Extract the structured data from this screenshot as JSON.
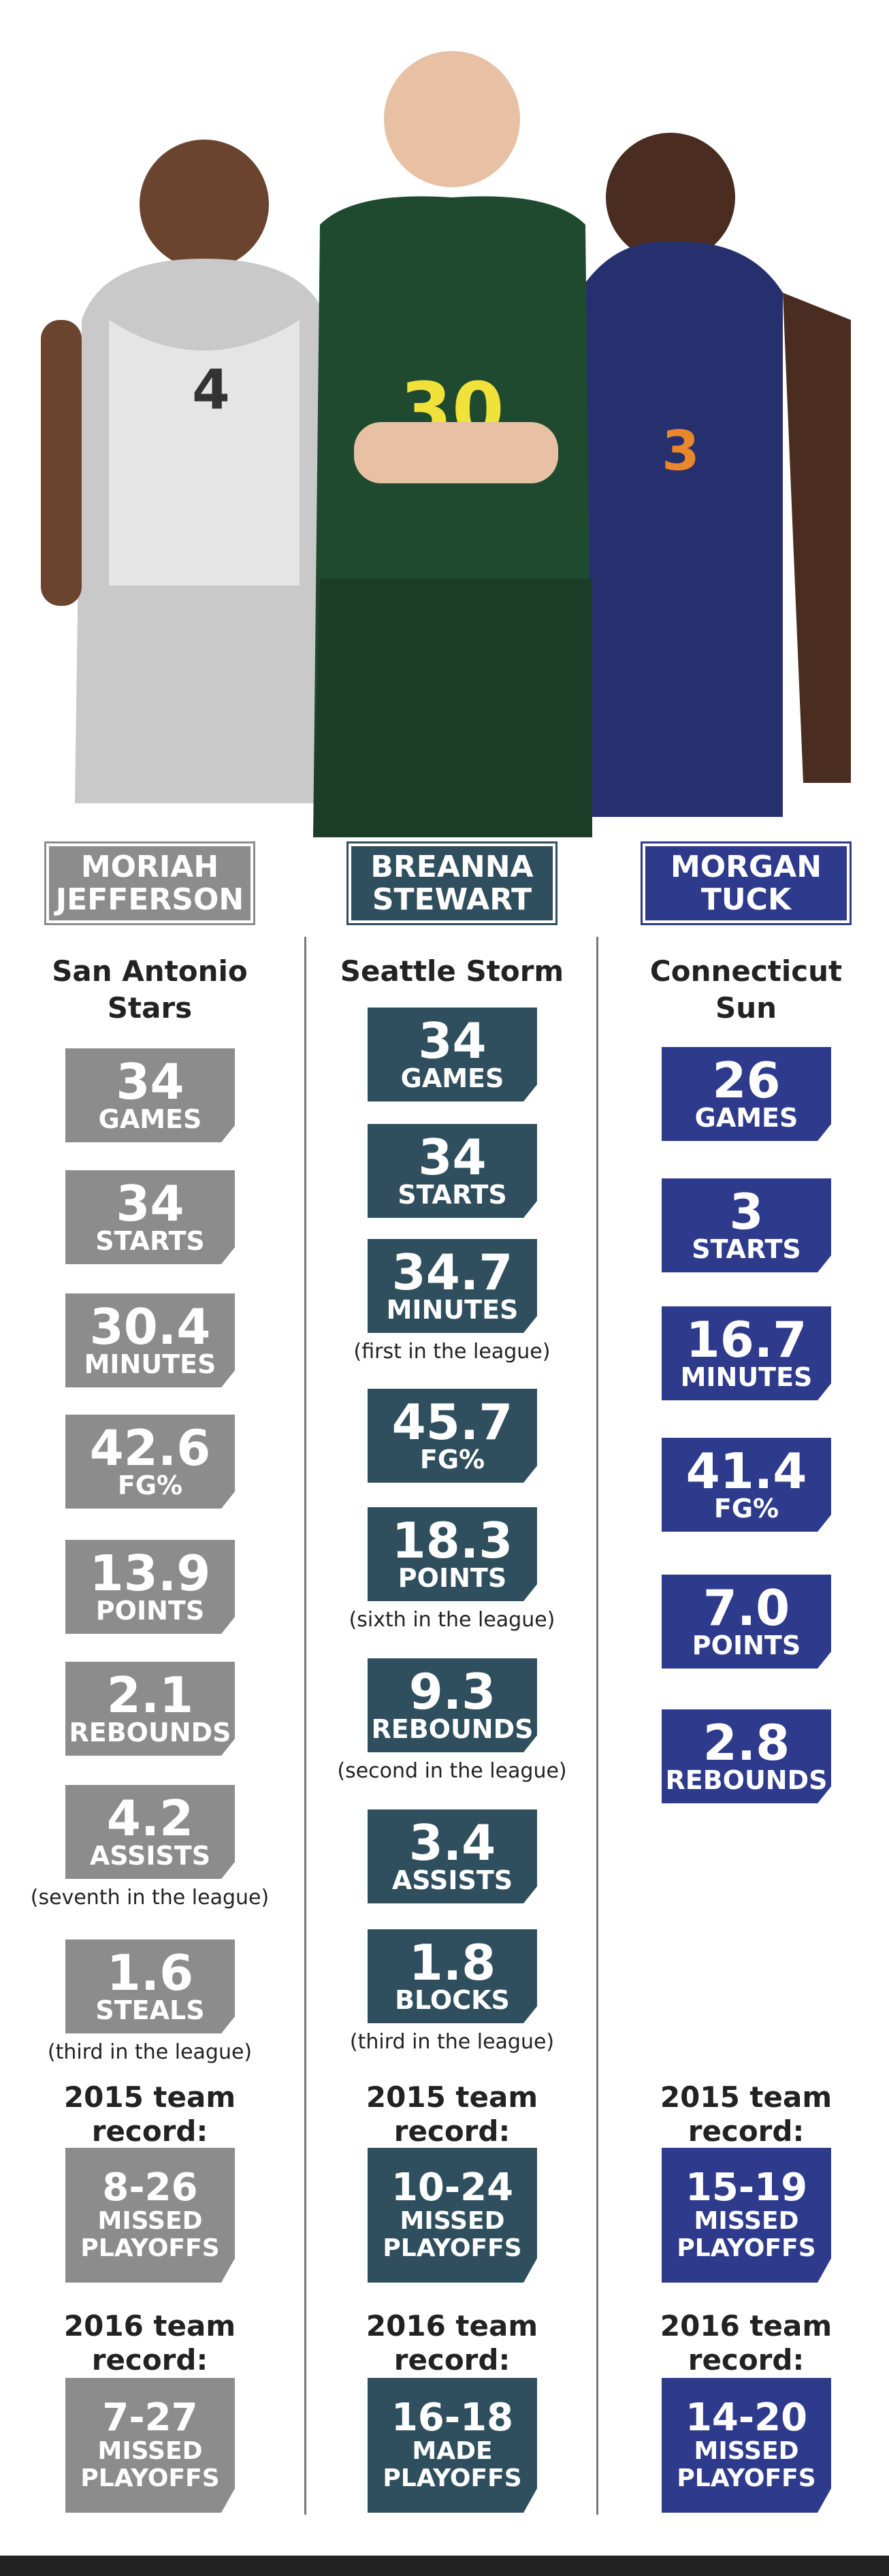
{
  "players": [
    {
      "first": "MORIAH",
      "last": "JEFFERSON",
      "team": "San Antonio Stars",
      "stats": [
        {
          "value": "34",
          "label": "GAMES"
        },
        {
          "value": "34",
          "label": "STARTS"
        },
        {
          "value": "30.4",
          "label": "MINUTES"
        },
        {
          "value": "42.6",
          "label": "FG%"
        },
        {
          "value": "13.9",
          "label": "POINTS"
        },
        {
          "value": "2.1",
          "label": "REBOUNDS"
        },
        {
          "value": "4.2",
          "label": "ASSISTS",
          "note": "(seventh in the league)"
        },
        {
          "value": "1.6",
          "label": "STEALS",
          "note": "(third in the league)"
        }
      ],
      "records": [
        {
          "heading": "2015 team record:",
          "value": "8-26",
          "result": "MISSED PLAYOFFS"
        },
        {
          "heading": "2016 team record:",
          "value": "7-27",
          "result": "MISSED PLAYOFFS"
        }
      ]
    },
    {
      "first": "BREANNA",
      "last": "STEWART",
      "team": "Seattle Storm",
      "stats": [
        {
          "value": "34",
          "label": "GAMES"
        },
        {
          "value": "34",
          "label": "STARTS"
        },
        {
          "value": "34.7",
          "label": "MINUTES",
          "note": "(first in the league)"
        },
        {
          "value": "45.7",
          "label": "FG%"
        },
        {
          "value": "18.3",
          "label": "POINTS",
          "note": "(sixth in the league)"
        },
        {
          "value": "9.3",
          "label": "REBOUNDS",
          "note": "(second in the league)"
        },
        {
          "value": "3.4",
          "label": "ASSISTS"
        },
        {
          "value": "1.8",
          "label": "BLOCKS",
          "note": "(third in the league)"
        }
      ],
      "records": [
        {
          "heading": "2015 team record:",
          "value": "10-24",
          "result": "MISSED PLAYOFFS"
        },
        {
          "heading": "2016 team record:",
          "value": "16-18",
          "result": "MADE PLAYOFFS"
        }
      ]
    },
    {
      "first": "MORGAN",
      "last": "TUCK",
      "team": "Connecticut Sun",
      "stats": [
        {
          "value": "26",
          "label": "GAMES"
        },
        {
          "value": "3",
          "label": "STARTS"
        },
        {
          "value": "16.7",
          "label": "MINUTES"
        },
        {
          "value": "41.4",
          "label": "FG%"
        },
        {
          "value": "7.0",
          "label": "POINTS"
        },
        {
          "value": "2.8",
          "label": "REBOUNDS"
        }
      ],
      "records": [
        {
          "heading": "2015 team record:",
          "value": "15-19",
          "result": "MISSED PLAYOFFS"
        },
        {
          "heading": "2016 team record:",
          "value": "14-20",
          "result": "MISSED PLAYOFFS"
        }
      ]
    }
  ]
}
